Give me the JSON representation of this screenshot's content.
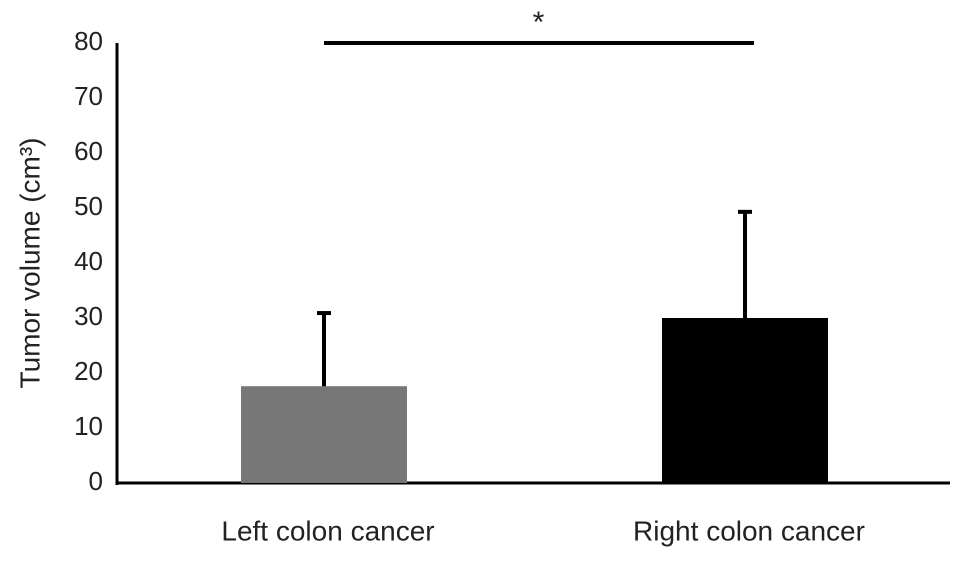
{
  "chart_data": {
    "type": "bar",
    "y_label": "Tumor volume (cm³)",
    "annotation": "*",
    "categories": [
      "Left colon cancer",
      "Right colon cancer"
    ],
    "values": [
      17.6,
      30
    ],
    "errors": [
      13.3,
      19.3
    ],
    "colors": [
      "#777777",
      "#000000"
    ],
    "ylim": [
      0,
      80
    ],
    "yticks": [
      0,
      10,
      20,
      30,
      40,
      50,
      60,
      70,
      80
    ],
    "grid": false
  }
}
